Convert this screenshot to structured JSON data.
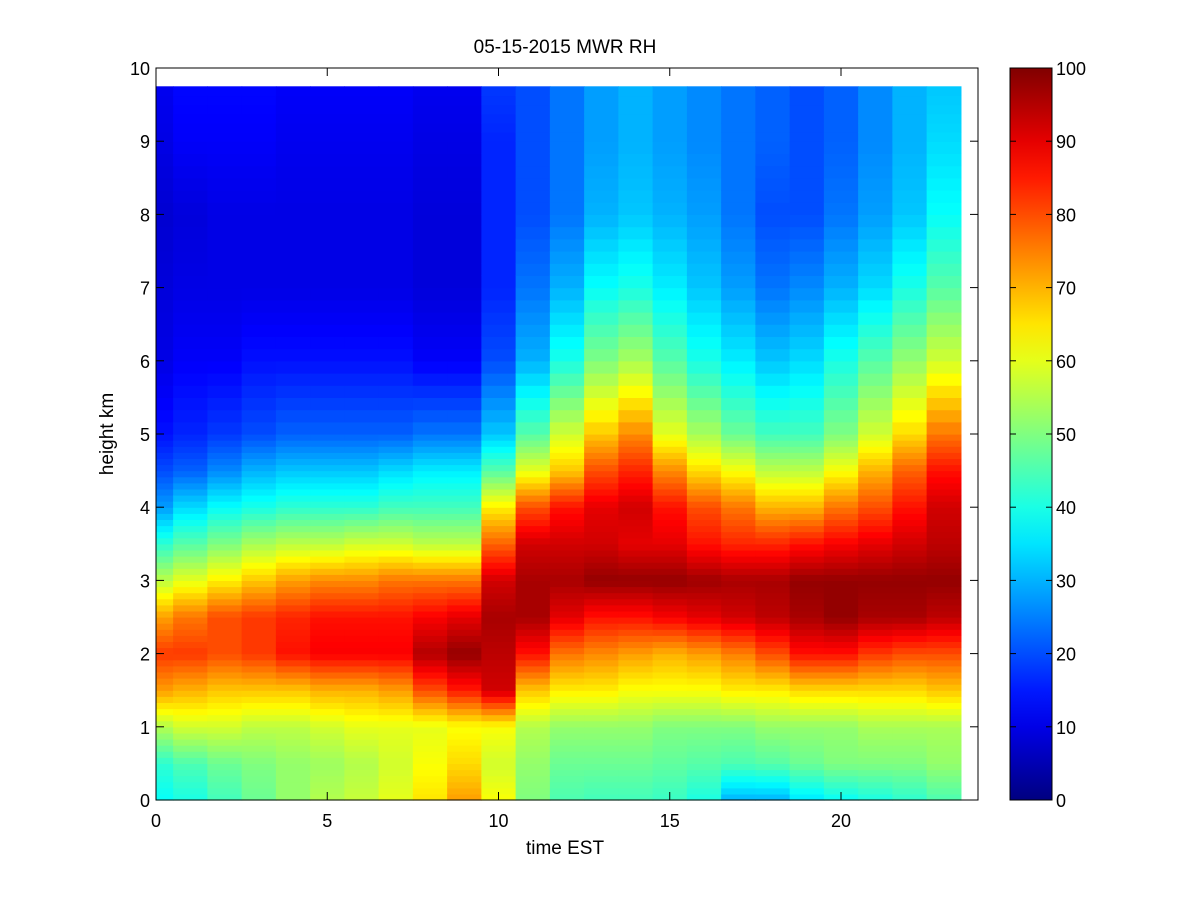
{
  "chart_data": {
    "type": "heatmap",
    "title": "05-15-2015 MWR RH",
    "xlabel": "time EST",
    "ylabel": "height km",
    "xlim": [
      0,
      24
    ],
    "ylim": [
      0,
      10
    ],
    "x_ticks": [
      "0",
      "5",
      "10",
      "15",
      "20"
    ],
    "y_ticks": [
      "0",
      "1",
      "2",
      "3",
      "4",
      "5",
      "6",
      "7",
      "8",
      "9",
      "10"
    ],
    "colorbar": {
      "colormap": "jet",
      "range": [
        0,
        100
      ],
      "ticks": [
        "0",
        "10",
        "20",
        "30",
        "40",
        "50",
        "60",
        "70",
        "80",
        "90",
        "100"
      ]
    },
    "x_values": [
      0,
      1,
      2,
      3,
      4,
      5,
      6,
      7,
      8,
      9,
      10,
      11,
      12,
      13,
      14,
      15,
      16,
      17,
      18,
      19,
      20,
      21,
      22,
      23
    ],
    "y_values": [
      0,
      0.5,
      1,
      1.5,
      2,
      2.5,
      3,
      3.5,
      4,
      4.5,
      5,
      6,
      7,
      8,
      9,
      9.75
    ],
    "z_values": [
      [
        38,
        40,
        44,
        48,
        52,
        55,
        57,
        60,
        65,
        72,
        62,
        50,
        45,
        44,
        44,
        43,
        40,
        30,
        30,
        35,
        38,
        40,
        42,
        45
      ],
      [
        42,
        45,
        48,
        50,
        52,
        53,
        55,
        58,
        62,
        66,
        58,
        52,
        48,
        48,
        48,
        47,
        46,
        45,
        46,
        48,
        50,
        50,
        50,
        52
      ],
      [
        55,
        58,
        58,
        56,
        56,
        58,
        60,
        60,
        60,
        62,
        62,
        55,
        52,
        52,
        52,
        50,
        50,
        50,
        52,
        52,
        52,
        54,
        54,
        54
      ],
      [
        72,
        70,
        68,
        68,
        68,
        70,
        70,
        72,
        80,
        85,
        92,
        68,
        64,
        64,
        62,
        62,
        62,
        64,
        64,
        66,
        66,
        66,
        66,
        68
      ],
      [
        82,
        82,
        80,
        82,
        86,
        88,
        88,
        88,
        95,
        98,
        94,
        86,
        76,
        74,
        72,
        70,
        72,
        75,
        80,
        86,
        86,
        82,
        80,
        80
      ],
      [
        72,
        76,
        80,
        82,
        84,
        86,
        86,
        86,
        88,
        90,
        96,
        96,
        90,
        86,
        86,
        88,
        90,
        92,
        94,
        96,
        98,
        96,
        96,
        94
      ],
      [
        56,
        60,
        64,
        68,
        72,
        74,
        74,
        76,
        76,
        76,
        92,
        96,
        96,
        98,
        98,
        98,
        97,
        96,
        96,
        98,
        98,
        98,
        98,
        98
      ],
      [
        42,
        46,
        50,
        54,
        56,
        56,
        58,
        58,
        56,
        56,
        78,
        92,
        92,
        92,
        90,
        90,
        86,
        84,
        84,
        86,
        88,
        90,
        92,
        94
      ],
      [
        28,
        34,
        38,
        40,
        42,
        42,
        42,
        44,
        44,
        44,
        64,
        80,
        86,
        90,
        92,
        86,
        80,
        76,
        70,
        70,
        76,
        80,
        86,
        92
      ],
      [
        20,
        22,
        26,
        30,
        32,
        32,
        32,
        34,
        36,
        36,
        46,
        60,
        68,
        80,
        84,
        74,
        66,
        62,
        56,
        56,
        62,
        70,
        78,
        86
      ],
      [
        14,
        16,
        18,
        20,
        22,
        22,
        22,
        22,
        24,
        24,
        32,
        46,
        58,
        68,
        74,
        60,
        54,
        48,
        44,
        44,
        50,
        58,
        66,
        76
      ],
      [
        10,
        12,
        12,
        14,
        14,
        14,
        14,
        14,
        12,
        12,
        20,
        30,
        40,
        50,
        54,
        46,
        40,
        36,
        32,
        34,
        40,
        46,
        52,
        58
      ],
      [
        9,
        10,
        10,
        10,
        10,
        10,
        10,
        10,
        9,
        9,
        16,
        24,
        30,
        38,
        40,
        36,
        32,
        28,
        24,
        26,
        30,
        34,
        40,
        46
      ],
      [
        8,
        9,
        10,
        10,
        10,
        10,
        10,
        10,
        9,
        9,
        16,
        20,
        24,
        30,
        32,
        30,
        28,
        24,
        20,
        20,
        24,
        28,
        32,
        38
      ],
      [
        10,
        12,
        12,
        12,
        11,
        11,
        11,
        11,
        10,
        10,
        16,
        20,
        24,
        28,
        30,
        28,
        26,
        24,
        22,
        20,
        22,
        26,
        30,
        34
      ],
      [
        11,
        13,
        13,
        13,
        12,
        12,
        12,
        12,
        11,
        11,
        18,
        20,
        24,
        28,
        30,
        28,
        26,
        24,
        22,
        20,
        22,
        26,
        30,
        32
      ]
    ]
  }
}
